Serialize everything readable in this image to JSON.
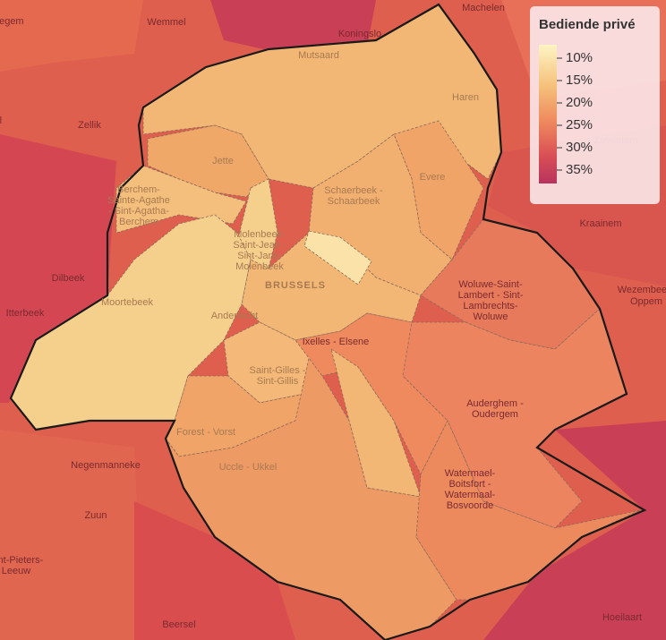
{
  "legend": {
    "title": "Bediende privé",
    "range": [
      7,
      38
    ],
    "ticks": [
      {
        "value": 10,
        "label": "10%"
      },
      {
        "value": 15,
        "label": "15%"
      },
      {
        "value": 20,
        "label": "20%"
      },
      {
        "value": 25,
        "label": "25%"
      },
      {
        "value": 30,
        "label": "30%"
      },
      {
        "value": 35,
        "label": "35%"
      }
    ]
  },
  "places": [
    {
      "lines": [
        "Machelen"
      ]
    },
    {
      "lines": [
        "Kobbegem"
      ]
    },
    {
      "lines": [
        "Wemmel"
      ]
    },
    {
      "lines": [
        "Koningslo"
      ]
    },
    {
      "lines": [
        "Mutsaard"
      ]
    },
    {
      "lines": [
        "Haren"
      ]
    },
    {
      "lines": [
        "Zellik"
      ]
    },
    {
      "lines": [
        "zeel"
      ]
    },
    {
      "lines": [
        "Jette"
      ]
    },
    {
      "lines": [
        "Berchem-",
        "Sainte-Agathe",
        "- Sint-Agatha-",
        "Berchem"
      ]
    },
    {
      "lines": [
        "Evere"
      ]
    },
    {
      "lines": [
        "Schaerbeek -",
        "Schaarbeek"
      ]
    },
    {
      "lines": [
        "Molenbeek-",
        "Saint-Jean -",
        "Sint-Jans-",
        "Molenbeek"
      ]
    },
    {
      "lines": [
        "BRUSSELS"
      ]
    },
    {
      "lines": [
        "Dilbeek"
      ]
    },
    {
      "lines": [
        "Itterbeek"
      ]
    },
    {
      "lines": [
        "Moortebeek"
      ]
    },
    {
      "lines": [
        "Anderlecht"
      ]
    },
    {
      "lines": [
        "Woluwe-Saint-",
        "Lambert - Sint-",
        "Lambrechts-",
        "Woluwe"
      ]
    },
    {
      "lines": [
        "Kraainem"
      ]
    },
    {
      "lines": [
        "Wezembeek-",
        "Oppem"
      ]
    },
    {
      "lines": [
        "Zaventem"
      ]
    },
    {
      "lines": [
        "Ixelles - Elsene"
      ]
    },
    {
      "lines": [
        "Saint-Gilles -",
        "Sint-Gillis"
      ]
    },
    {
      "lines": [
        "Auderghem -",
        "Oudergem"
      ]
    },
    {
      "lines": [
        "Forest - Vorst"
      ]
    },
    {
      "lines": [
        "Uccle - Ukkel"
      ]
    },
    {
      "lines": [
        "Watermael-",
        "Boitsfort -",
        "Watermaal-",
        "Bosvoorde"
      ]
    },
    {
      "lines": [
        "Negenmanneke"
      ]
    },
    {
      "lines": [
        "Zuun"
      ]
    },
    {
      "lines": [
        "Sint-Pieters-",
        "Leeuw"
      ]
    },
    {
      "lines": [
        "Beersel"
      ]
    },
    {
      "lines": [
        "Hoeilaart"
      ]
    }
  ]
}
